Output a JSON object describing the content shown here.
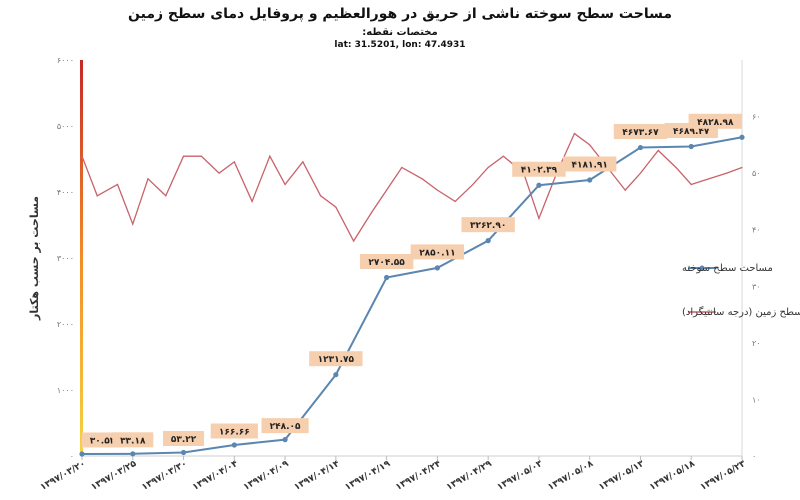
{
  "header": {
    "title": "مساحت سطح سوخته ناشی از حریق در هورالعظیم و  پروفایل دمای سطح زمین",
    "subtitle": "مختصات نقطه:",
    "coords": "lat: 31.5201, lon: 47.4931"
  },
  "colors": {
    "area_line": "#5b86b0",
    "temp_line": "#c9626a",
    "label_box": "#f6cfae",
    "axis_gradient": [
      "#c62828",
      "#f28c28",
      "#f5d442"
    ]
  },
  "chart_data": {
    "type": "line",
    "x": [
      "۱۳۹۷/۰۳/۲۰",
      "۱۳۹۷/۰۳/۲۵",
      "۱۳۹۷/۰۳/۳۰",
      "۱۳۹۷/۰۴/۰۴",
      "۱۳۹۷/۰۴/۰۹",
      "۱۳۹۷/۰۴/۱۴",
      "۱۳۹۷/۰۴/۱۹",
      "۱۳۹۷/۰۴/۲۴",
      "۱۳۹۷/۰۴/۲۹",
      "۱۳۹۷/۰۵/۰۳",
      "۱۳۹۷/۰۵/۰۸",
      "۱۳۹۷/۰۵/۱۳",
      "۱۳۹۷/۰۵/۱۸",
      "۱۳۹۷/۰۵/۲۳"
    ],
    "ylabel": "مساحت بر حسب هکتار",
    "ylim": [
      0,
      6000
    ],
    "yticks": [
      "۰",
      "۱۰۰۰",
      "۲۰۰۰",
      "۳۰۰۰",
      "۴۰۰۰",
      "۵۰۰۰",
      "۶۰۰۰"
    ],
    "y2lim": [
      0,
      70
    ],
    "y2ticks": [
      "۰",
      "۱۰",
      "۲۰",
      "۳۰",
      "۴۰",
      "۵۰",
      "۶۰"
    ],
    "legend_position": "right",
    "series": [
      {
        "name": "مساحت سطح سوخته",
        "axis": "left",
        "x_index": [
          0,
          1,
          2,
          3,
          4,
          5,
          6,
          7,
          8,
          9,
          10,
          11,
          12,
          13
        ],
        "values": [
          30.54,
          33.18,
          53.22,
          166.66,
          248.05,
          1231.75,
          2704.55,
          2850.11,
          3262.9,
          4102.39,
          4181.91,
          4673.67,
          4689.47,
          4828.98
        ],
        "labels": [
          "۳۰.۵۴",
          "۳۳.۱۸",
          "۵۳.۲۲",
          "۱۶۶.۶۶",
          "۲۴۸.۰۵",
          "۱۲۳۱.۷۵",
          "۲۷۰۴.۵۵",
          "۲۸۵۰.۱۱",
          "۳۲۶۲.۹۰",
          "۴۱۰۲.۳۹",
          "۴۱۸۱.۹۱",
          "۴۶۷۳.۶۷",
          "۴۶۸۹.۴۷",
          "۴۸۲۸.۹۸"
        ]
      },
      {
        "name": "دمای سطح زمین (درجه سانتیگراد)",
        "axis": "right",
        "x": [
          0,
          0.3,
          0.7,
          1,
          1.3,
          1.65,
          2,
          2.35,
          2.7,
          3,
          3.35,
          3.7,
          4,
          4.35,
          4.7,
          5,
          5.35,
          5.7,
          6,
          6.3,
          6.7,
          7,
          7.35,
          7.7,
          8,
          8.3,
          8.7,
          9,
          9.35,
          9.7,
          10,
          10.35,
          10.7,
          11,
          11.35,
          11.7,
          12,
          12.35,
          12.7,
          13
        ],
        "values": [
          53,
          46,
          48,
          41,
          49,
          46,
          53,
          53,
          50,
          52,
          45,
          53,
          48,
          52,
          46,
          44,
          38,
          43,
          47,
          51,
          49,
          47,
          45,
          48,
          51,
          53,
          50,
          42,
          50,
          57,
          55,
          51,
          47,
          50,
          54,
          51,
          48,
          49,
          50,
          51
        ]
      }
    ]
  }
}
